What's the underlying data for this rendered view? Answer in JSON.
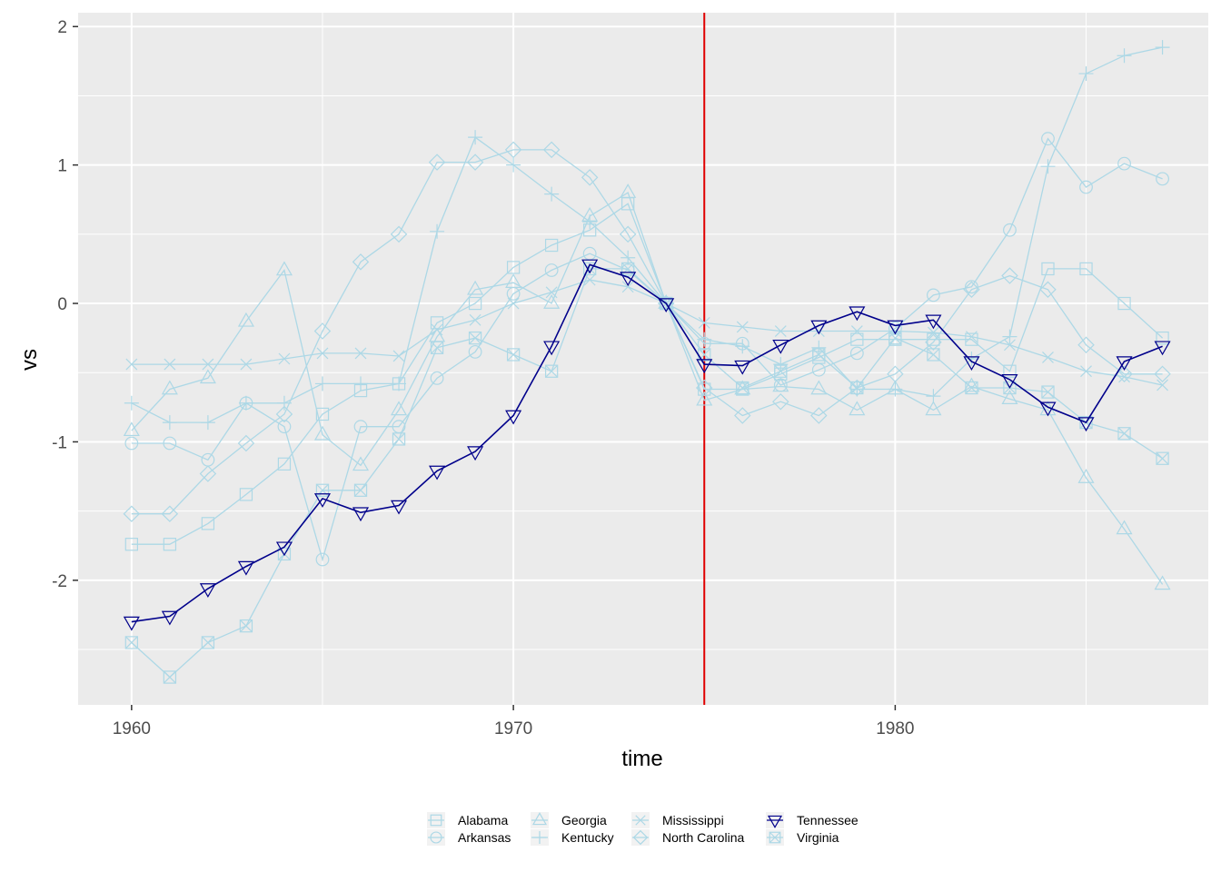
{
  "chart_data": {
    "type": "line",
    "xlabel": "time",
    "ylabel": "vs",
    "xlim": [
      1958.6,
      1988.2
    ],
    "ylim": [
      -2.9,
      2.1
    ],
    "x_ticks": [
      1960,
      1970,
      1980
    ],
    "y_ticks": [
      -2,
      -1,
      0,
      1,
      2
    ],
    "y_tick_labels": [
      "-2",
      "-1",
      "0",
      "1",
      "2"
    ],
    "grid": true,
    "legend_position": "bottom",
    "intervention_line": {
      "x": 1975,
      "color": "#e00000"
    },
    "x": [
      1960,
      1961,
      1962,
      1963,
      1964,
      1965,
      1966,
      1967,
      1968,
      1969,
      1970,
      1971,
      1972,
      1973,
      1974,
      1975,
      1976,
      1977,
      1978,
      1979,
      1980,
      1981,
      1982,
      1983,
      1984,
      1985,
      1986,
      1987
    ],
    "series": [
      {
        "name": "Alabama",
        "shape": "square",
        "color": "#add8e6",
        "values": [
          -1.74,
          -1.74,
          -1.59,
          -1.38,
          -1.16,
          -0.8,
          -0.63,
          -0.58,
          -0.14,
          0.0,
          0.26,
          0.42,
          0.53,
          0.72,
          0.0,
          -0.62,
          -0.62,
          -0.51,
          -0.39,
          -0.26,
          -0.26,
          -0.26,
          -0.26,
          -0.49,
          0.25,
          0.25,
          0.0,
          -0.25
        ]
      },
      {
        "name": "Arkansas",
        "shape": "circle",
        "color": "#add8e6",
        "values": [
          -1.01,
          -1.01,
          -1.13,
          -0.72,
          -0.89,
          -1.85,
          -0.89,
          -0.89,
          -0.54,
          -0.35,
          0.07,
          0.24,
          0.36,
          0.24,
          0.0,
          -0.29,
          -0.29,
          -0.59,
          -0.48,
          -0.36,
          -0.18,
          0.06,
          0.12,
          0.53,
          1.19,
          0.84,
          1.01,
          0.9
        ]
      },
      {
        "name": "Georgia",
        "shape": "triangle",
        "color": "#add8e6",
        "values": [
          -0.92,
          -0.62,
          -0.54,
          -0.13,
          0.24,
          -0.95,
          -1.17,
          -0.77,
          -0.24,
          0.1,
          0.15,
          0.0,
          0.63,
          0.8,
          0.0,
          -0.7,
          -0.62,
          -0.6,
          -0.62,
          -0.77,
          -0.62,
          -0.77,
          -0.6,
          -0.69,
          -0.77,
          -1.26,
          -1.63,
          -2.03
        ]
      },
      {
        "name": "Kentucky",
        "shape": "plus",
        "color": "#add8e6",
        "values": [
          -0.72,
          -0.86,
          -0.86,
          -0.72,
          -0.72,
          -0.58,
          -0.58,
          -0.58,
          0.52,
          1.2,
          1.0,
          0.79,
          0.59,
          0.33,
          0.0,
          -0.26,
          -0.31,
          -0.44,
          -0.32,
          -0.62,
          -0.62,
          -0.67,
          -0.4,
          -0.24,
          0.99,
          1.66,
          1.79,
          1.85
        ]
      },
      {
        "name": "Mississippi",
        "shape": "cross",
        "color": "#add8e6",
        "values": [
          -0.44,
          -0.44,
          -0.44,
          -0.44,
          -0.4,
          -0.36,
          -0.36,
          -0.38,
          -0.19,
          -0.12,
          0.0,
          0.08,
          0.17,
          0.12,
          0.0,
          -0.14,
          -0.17,
          -0.2,
          -0.2,
          -0.2,
          -0.2,
          -0.21,
          -0.24,
          -0.3,
          -0.39,
          -0.49,
          -0.53,
          -0.59
        ]
      },
      {
        "name": "North Carolina",
        "shape": "diamond",
        "color": "#add8e6",
        "values": [
          -1.52,
          -1.52,
          -1.23,
          -1.01,
          -0.8,
          -0.2,
          0.3,
          0.5,
          1.02,
          1.02,
          1.11,
          1.11,
          0.91,
          0.5,
          0.0,
          -0.61,
          -0.81,
          -0.71,
          -0.81,
          -0.61,
          -0.51,
          -0.28,
          0.1,
          0.2,
          0.1,
          -0.3,
          -0.51,
          -0.51
        ]
      },
      {
        "name": "Tennessee",
        "shape": "triangle-down",
        "color": "#00008b",
        "values": [
          -2.3,
          -2.26,
          -2.06,
          -1.9,
          -1.76,
          -1.41,
          -1.51,
          -1.46,
          -1.21,
          -1.07,
          -0.81,
          -0.31,
          0.28,
          0.19,
          0.0,
          -0.44,
          -0.45,
          -0.3,
          -0.16,
          -0.06,
          -0.16,
          -0.12,
          -0.42,
          -0.55,
          -0.75,
          -0.86,
          -0.42,
          -0.31
        ]
      },
      {
        "name": "Virginia",
        "shape": "boxcross",
        "color": "#add8e6",
        "values": [
          -2.45,
          -2.7,
          -2.45,
          -2.33,
          -1.81,
          -1.35,
          -1.35,
          -0.98,
          -0.32,
          -0.25,
          -0.37,
          -0.49,
          0.25,
          0.25,
          0.0,
          -0.37,
          -0.61,
          -0.49,
          -0.37,
          -0.61,
          -0.25,
          -0.37,
          -0.61,
          -0.61,
          -0.64,
          -0.86,
          -0.94,
          -1.12
        ]
      }
    ]
  }
}
